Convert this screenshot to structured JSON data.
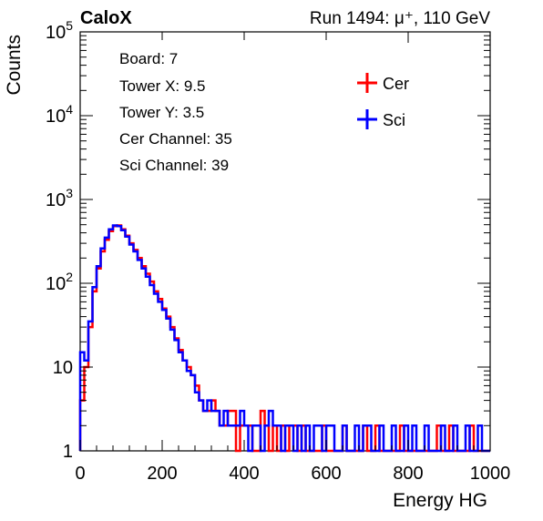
{
  "header": {
    "experiment": "CaloX",
    "run_info": "Run 1494:   μ⁺, 110 GeV"
  },
  "info_box": {
    "lines": [
      "Board: 7",
      "Tower X: 9.5",
      "Tower Y: 3.5",
      "Cer Channel: 35",
      "Sci Channel: 39"
    ]
  },
  "colors": {
    "cer": "#ff0000",
    "sci": "#0000ff"
  },
  "chart_data": {
    "type": "line",
    "title": "",
    "xlabel": "Energy HG",
    "ylabel": "Counts",
    "xlim": [
      0,
      1000
    ],
    "ylim": [
      1,
      100000
    ],
    "yscale": "log",
    "grid": false,
    "legend_position": "top-right",
    "x_ticks": [
      "0",
      "200",
      "400",
      "600",
      "800",
      "1000"
    ],
    "y_ticks": [
      {
        "value": 1,
        "base": "1",
        "exp": ""
      },
      {
        "value": 10,
        "base": "10",
        "exp": ""
      },
      {
        "value": 100,
        "base": "10",
        "exp": "2"
      },
      {
        "value": 1000,
        "base": "10",
        "exp": "3"
      },
      {
        "value": 10000,
        "base": "10",
        "exp": "4"
      },
      {
        "value": 100000,
        "base": "10",
        "exp": "5"
      }
    ],
    "x": [
      0,
      10,
      20,
      30,
      40,
      50,
      60,
      70,
      80,
      90,
      100,
      110,
      120,
      130,
      140,
      150,
      160,
      170,
      180,
      190,
      200,
      210,
      220,
      230,
      240,
      250,
      260,
      270,
      280,
      290,
      300,
      310,
      320,
      330,
      340,
      350,
      360,
      370,
      380,
      390,
      400,
      410,
      420,
      430,
      440,
      450,
      460,
      470,
      480,
      490,
      500,
      510,
      520,
      530,
      540,
      550,
      560,
      570,
      580,
      590,
      600,
      610,
      620,
      630,
      640,
      650,
      660,
      670,
      680,
      690,
      700,
      710,
      720,
      730,
      740,
      750,
      760,
      770,
      780,
      790,
      800,
      810,
      820,
      830,
      840,
      850,
      860,
      870,
      880,
      890,
      900,
      910,
      920,
      930,
      940,
      950,
      960,
      970,
      980,
      990
    ],
    "series": [
      {
        "name": "Cer",
        "values": [
          4,
          10,
          30,
          80,
          150,
          240,
          330,
          420,
          480,
          490,
          440,
          370,
          300,
          250,
          200,
          160,
          130,
          105,
          80,
          65,
          50,
          40,
          30,
          22,
          16,
          12,
          10,
          8,
          6,
          4,
          3,
          3,
          4,
          3,
          2,
          2,
          3,
          3,
          1,
          2,
          2,
          2,
          1,
          1,
          3,
          2,
          1,
          2,
          1,
          2,
          1,
          2,
          2,
          1,
          2,
          1,
          1,
          1,
          1,
          2,
          1,
          1,
          1,
          1,
          2,
          1,
          1,
          1,
          1,
          2,
          1,
          1,
          2,
          1,
          1,
          1,
          1,
          1,
          2,
          1,
          1,
          1,
          1,
          1,
          1,
          1,
          1,
          2,
          1,
          1,
          2,
          1,
          1,
          1,
          1,
          2,
          1,
          1,
          1,
          1
        ]
      },
      {
        "name": "Sci",
        "values": [
          15,
          12,
          35,
          90,
          160,
          260,
          350,
          440,
          490,
          480,
          430,
          360,
          290,
          240,
          190,
          150,
          120,
          95,
          75,
          60,
          48,
          38,
          28,
          21,
          15,
          12,
          9,
          8,
          5,
          4,
          3,
          4,
          3,
          3,
          2,
          3,
          2,
          2,
          2,
          3,
          2,
          1,
          2,
          2,
          1,
          2,
          3,
          2,
          2,
          1,
          2,
          2,
          1,
          2,
          1,
          2,
          1,
          2,
          2,
          1,
          2,
          2,
          1,
          1,
          2,
          1,
          1,
          2,
          1,
          2,
          2,
          1,
          1,
          2,
          1,
          1,
          2,
          1,
          1,
          2,
          1,
          2,
          1,
          1,
          2,
          1,
          1,
          1,
          2,
          1,
          1,
          2,
          1,
          1,
          2,
          1,
          1,
          2,
          1,
          1
        ]
      }
    ]
  }
}
